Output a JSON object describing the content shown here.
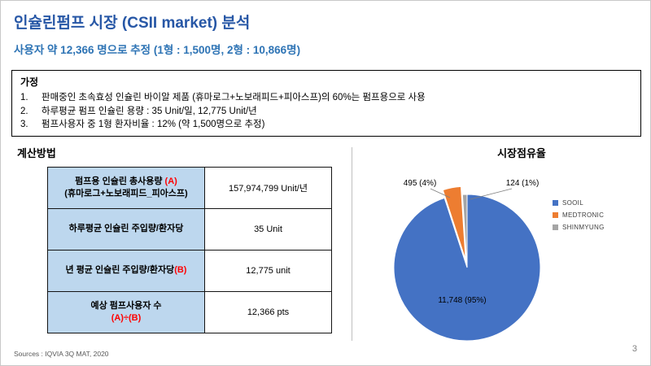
{
  "slide": {
    "title": "인슐린펌프 시장 (CSII market) 분석",
    "subtitle": "사용자 약 12,366 명으로 추정 (1형 : 1,500명, 2형 : 10,866명)",
    "source": "Sources : IQVIA 3Q MAT, 2020",
    "page_number": "3"
  },
  "theme": {
    "title_color": "#2757A6",
    "subtitle_color": "#2E74B5",
    "header_fill": "#BDD7EE",
    "accent_red": "#FF0000"
  },
  "assumptions": {
    "heading": "가정",
    "items": [
      {
        "num": "1.",
        "text": "판매중인 초속효성 인슐린 바이알 제품 (휴마로그+노보래피드+피아스프)의 60%는 펌프용으로 사용"
      },
      {
        "num": "2.",
        "text": "하루평균 펌프 인슐린 용량 : 35 Unit/일, 12,775 Unit/년"
      },
      {
        "num": "3.",
        "text": "펌프사용자 중 1형 환자비율 : 12% (약 1,500명으로 추정)"
      }
    ]
  },
  "calculation": {
    "heading": "계산방법",
    "rows": [
      {
        "l1": "펌프용 인슐린 총사용량 ",
        "l1r": "(A)",
        "l2": "(휴마로그+노보래피드_피아스프)",
        "l2r": "",
        "value": "157,974,799 Unit/년"
      },
      {
        "l1": "하루평균 인슐린 주입량/환자당",
        "l1r": "",
        "l2": "",
        "l2r": "",
        "value": "35 Unit"
      },
      {
        "l1": "년 평균 인슐린 주입량/환자당",
        "l1r": "(B)",
        "l2": "",
        "l2r": "",
        "value": "12,775 unit"
      },
      {
        "l1": "예상 펌프사용자 수",
        "l1r": "",
        "l2": "",
        "l2r": "(A)÷(B)",
        "value": "12,366 pts"
      }
    ]
  },
  "market_share": {
    "heading": "시장점유율"
  },
  "chart_data": {
    "type": "pie",
    "title": "시장점유율",
    "labels": [
      "SOOIL",
      "MEDTRONIC",
      "SHINMYUNG"
    ],
    "values": [
      11748,
      495,
      124
    ],
    "percentages": [
      95,
      4,
      1
    ],
    "data_labels": [
      "11,748 (95%)",
      "495 (4%)",
      "124 (1%)"
    ],
    "colors": [
      "#4472C4",
      "#ED7D31",
      "#A5A5A5"
    ],
    "explode": [
      0,
      10,
      0
    ],
    "start_angle_deg": -90,
    "direction": "clockwise",
    "legend_position": "right"
  }
}
